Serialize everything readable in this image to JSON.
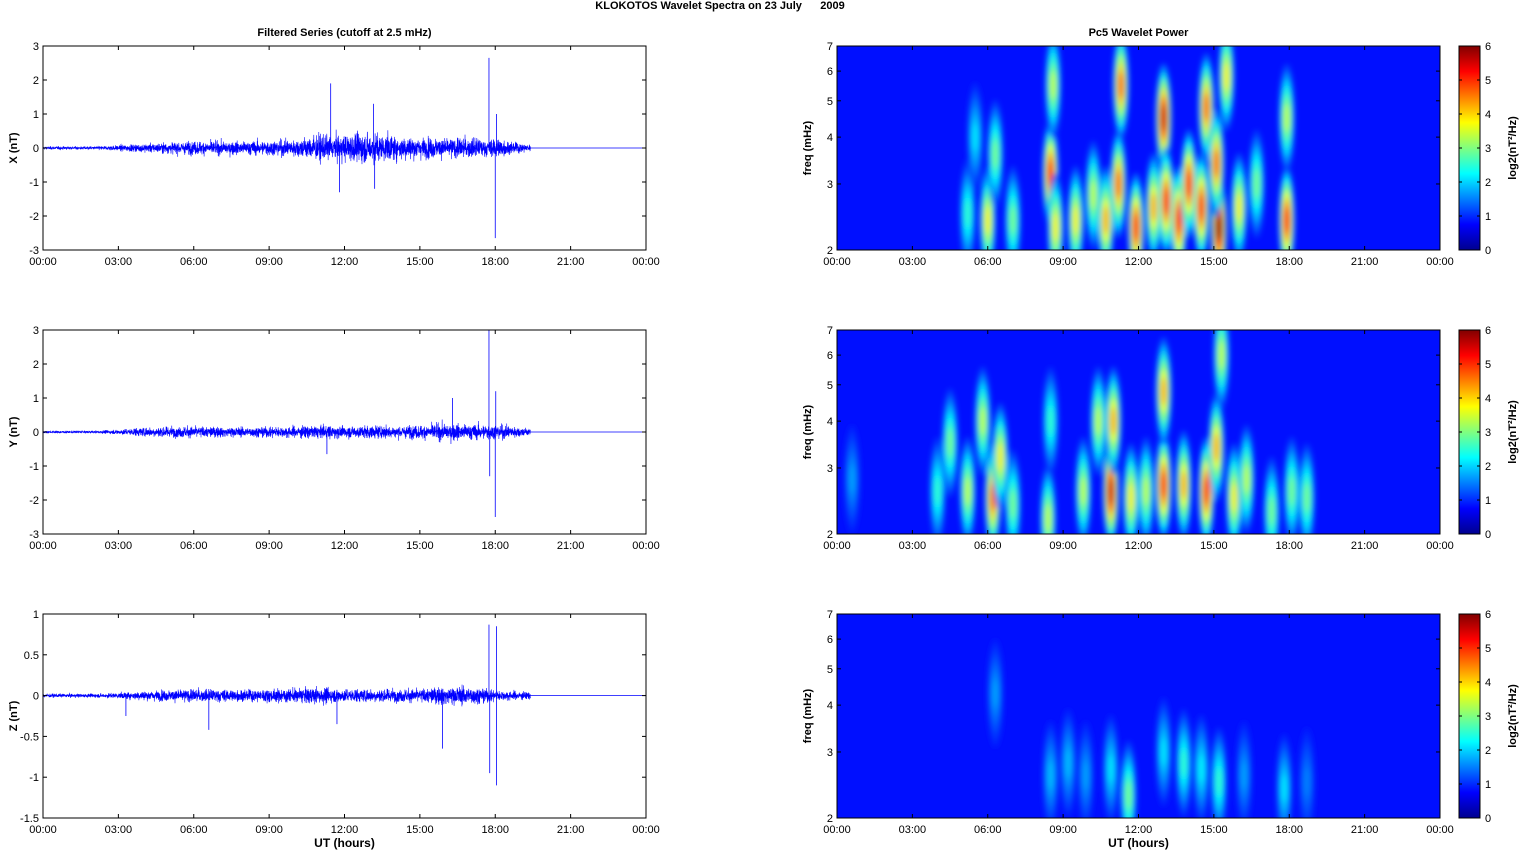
{
  "figure": {
    "title": "KLOKOTOS Wavelet Spectra on 23 July      2009"
  },
  "chart_data": [
    {
      "type": "line",
      "title": "Filtered Series (cutoff at 2.5 mHz)",
      "xlabel": "",
      "ylabel": "X (nT)",
      "x_ticks": [
        "00:00",
        "03:00",
        "06:00",
        "09:00",
        "12:00",
        "15:00",
        "18:00",
        "21:00",
        "00:00"
      ],
      "xlim_hours": [
        0,
        24
      ],
      "y_ticks": [
        "3",
        "2",
        "1",
        "0",
        "-1",
        "-2",
        "-3"
      ],
      "ylim": [
        -3,
        3
      ],
      "line_color": "#0000ff",
      "data_end_hour": 19.4,
      "envelope_hours": [
        0,
        2,
        4,
        6,
        8,
        10,
        11,
        11.5,
        12,
        13,
        14,
        15,
        16,
        17,
        17.8,
        18,
        18.5,
        19.3
      ],
      "envelope_amplitude": [
        0.08,
        0.08,
        0.22,
        0.35,
        0.35,
        0.45,
        0.7,
        0.6,
        0.7,
        0.8,
        0.65,
        0.55,
        0.5,
        0.55,
        0.4,
        0.6,
        0.35,
        0.2
      ],
      "spikes": [
        {
          "hour": 11.45,
          "value": 1.9
        },
        {
          "hour": 11.8,
          "value": -1.3
        },
        {
          "hour": 13.15,
          "value": 1.3
        },
        {
          "hour": 13.2,
          "value": -1.2
        },
        {
          "hour": 17.75,
          "value": 2.65
        },
        {
          "hour": 18.0,
          "value": -2.65
        },
        {
          "hour": 18.05,
          "value": 1.0
        }
      ]
    },
    {
      "type": "line",
      "xlabel": "",
      "ylabel": "Y (nT)",
      "x_ticks": [
        "00:00",
        "03:00",
        "06:00",
        "09:00",
        "12:00",
        "15:00",
        "18:00",
        "21:00",
        "00:00"
      ],
      "xlim_hours": [
        0,
        24
      ],
      "y_ticks": [
        "3",
        "2",
        "1",
        "0",
        "-1",
        "-2",
        "-3"
      ],
      "ylim": [
        -3,
        3
      ],
      "line_color": "#0000ff",
      "data_end_hour": 19.4,
      "envelope_hours": [
        0,
        2,
        3,
        4,
        6,
        8,
        10,
        11,
        12,
        13,
        14,
        15,
        16,
        17,
        18,
        18.5,
        19.3
      ],
      "envelope_amplitude": [
        0.06,
        0.06,
        0.12,
        0.25,
        0.3,
        0.25,
        0.3,
        0.35,
        0.3,
        0.35,
        0.3,
        0.35,
        0.45,
        0.4,
        0.4,
        0.35,
        0.2
      ],
      "spikes": [
        {
          "hour": 17.75,
          "value": 3.0
        },
        {
          "hour": 17.78,
          "value": -1.3
        },
        {
          "hour": 18.0,
          "value": -2.5
        },
        {
          "hour": 18.02,
          "value": 1.2
        },
        {
          "hour": 11.3,
          "value": -0.65
        },
        {
          "hour": 16.3,
          "value": 1.0
        }
      ]
    },
    {
      "type": "line",
      "xlabel": "UT (hours)",
      "ylabel": "Z (nT)",
      "x_ticks": [
        "00:00",
        "03:00",
        "06:00",
        "09:00",
        "12:00",
        "15:00",
        "18:00",
        "21:00",
        "00:00"
      ],
      "xlim_hours": [
        0,
        24
      ],
      "y_ticks": [
        "1",
        "0.5",
        "0",
        "-0.5",
        "-1",
        "-1.5"
      ],
      "ylim": [
        -1.5,
        1
      ],
      "line_color": "#0000ff",
      "data_end_hour": 19.4,
      "envelope_hours": [
        0,
        2,
        3,
        4,
        6,
        8,
        10,
        11,
        12,
        13,
        14,
        15,
        16,
        17,
        18,
        19.3
      ],
      "envelope_amplitude": [
        0.04,
        0.04,
        0.06,
        0.1,
        0.14,
        0.13,
        0.15,
        0.18,
        0.14,
        0.15,
        0.14,
        0.15,
        0.2,
        0.2,
        0.12,
        0.08
      ],
      "spikes": [
        {
          "hour": 3.3,
          "value": -0.25
        },
        {
          "hour": 6.6,
          "value": -0.42
        },
        {
          "hour": 11.7,
          "value": -0.35
        },
        {
          "hour": 15.9,
          "value": -0.65
        },
        {
          "hour": 17.75,
          "value": 0.87
        },
        {
          "hour": 17.78,
          "value": -0.95
        },
        {
          "hour": 18.05,
          "value": 0.85
        },
        {
          "hour": 18.05,
          "value": -1.1
        }
      ]
    },
    {
      "type": "heatmap",
      "title": "Pc5 Wavelet Power",
      "xlabel": "",
      "ylabel": "freq (mHz)",
      "x_ticks": [
        "00:00",
        "03:00",
        "06:00",
        "09:00",
        "12:00",
        "15:00",
        "18:00",
        "21:00",
        "00:00"
      ],
      "xlim_hours": [
        0,
        24
      ],
      "y_ticks": [
        "7",
        "6",
        "5",
        "4",
        "3",
        "2"
      ],
      "ylim_mhz": [
        2,
        7
      ],
      "y_scale": "log",
      "colorbar_label": "log2(nT²/Hz)",
      "colorbar_ticks": [
        "6",
        "5",
        "4",
        "3",
        "2",
        "1",
        "0"
      ],
      "clim": [
        0,
        6
      ],
      "colormap": "jet",
      "blobs": [
        {
          "hour": 5.2,
          "freq": 2.5,
          "power": 2.0
        },
        {
          "hour": 5.5,
          "freq": 4.0,
          "power": 1.5
        },
        {
          "hour": 6.0,
          "freq": 2.4,
          "power": 3.5
        },
        {
          "hour": 6.3,
          "freq": 3.6,
          "power": 2.5
        },
        {
          "hour": 7.0,
          "freq": 2.4,
          "power": 2.5
        },
        {
          "hour": 8.5,
          "freq": 3.2,
          "power": 5.0
        },
        {
          "hour": 8.7,
          "freq": 2.3,
          "power": 3.5
        },
        {
          "hour": 8.6,
          "freq": 5.5,
          "power": 3.0
        },
        {
          "hour": 9.5,
          "freq": 2.4,
          "power": 3.5
        },
        {
          "hour": 10.2,
          "freq": 2.8,
          "power": 3.0
        },
        {
          "hour": 10.7,
          "freq": 2.4,
          "power": 4.0
        },
        {
          "hour": 11.2,
          "freq": 3.0,
          "power": 4.5
        },
        {
          "hour": 11.3,
          "freq": 5.5,
          "power": 4.5
        },
        {
          "hour": 11.9,
          "freq": 2.3,
          "power": 5.0
        },
        {
          "hour": 12.6,
          "freq": 2.6,
          "power": 4.0
        },
        {
          "hour": 13.0,
          "freq": 4.5,
          "power": 5.5
        },
        {
          "hour": 13.1,
          "freq": 2.7,
          "power": 5.0
        },
        {
          "hour": 13.6,
          "freq": 2.4,
          "power": 5.0
        },
        {
          "hour": 14.0,
          "freq": 3.0,
          "power": 5.0
        },
        {
          "hour": 14.5,
          "freq": 2.6,
          "power": 5.0
        },
        {
          "hour": 14.7,
          "freq": 4.8,
          "power": 4.5
        },
        {
          "hour": 15.2,
          "freq": 2.3,
          "power": 6.0
        },
        {
          "hour": 15.1,
          "freq": 3.4,
          "power": 4.5
        },
        {
          "hour": 15.5,
          "freq": 5.8,
          "power": 3.5
        },
        {
          "hour": 16.0,
          "freq": 2.6,
          "power": 3.5
        },
        {
          "hour": 16.7,
          "freq": 3.0,
          "power": 2.5
        },
        {
          "hour": 17.9,
          "freq": 2.4,
          "power": 5.0
        },
        {
          "hour": 17.9,
          "freq": 4.5,
          "power": 3.0
        }
      ]
    },
    {
      "type": "heatmap",
      "xlabel": "",
      "ylabel": "freq (mHz)",
      "x_ticks": [
        "00:00",
        "03:00",
        "06:00",
        "09:00",
        "12:00",
        "15:00",
        "18:00",
        "21:00",
        "00:00"
      ],
      "xlim_hours": [
        0,
        24
      ],
      "y_ticks": [
        "7",
        "6",
        "5",
        "4",
        "3",
        "2"
      ],
      "ylim_mhz": [
        2,
        7
      ],
      "y_scale": "log",
      "colorbar_label": "log2(nT²/Hz)",
      "colorbar_ticks": [
        "6",
        "5",
        "4",
        "3",
        "2",
        "1",
        "0"
      ],
      "clim": [
        0,
        6
      ],
      "colormap": "jet",
      "blobs": [
        {
          "hour": 0.6,
          "freq": 2.8,
          "power": 1.0
        },
        {
          "hour": 4.0,
          "freq": 2.6,
          "power": 2.0
        },
        {
          "hour": 4.5,
          "freq": 3.5,
          "power": 2.5
        },
        {
          "hour": 5.2,
          "freq": 2.6,
          "power": 3.0
        },
        {
          "hour": 5.8,
          "freq": 4.0,
          "power": 3.0
        },
        {
          "hour": 6.2,
          "freq": 2.5,
          "power": 4.5
        },
        {
          "hour": 6.5,
          "freq": 3.2,
          "power": 3.5
        },
        {
          "hour": 7.0,
          "freq": 2.4,
          "power": 2.5
        },
        {
          "hour": 8.4,
          "freq": 2.2,
          "power": 3.0
        },
        {
          "hour": 8.5,
          "freq": 4.0,
          "power": 2.0
        },
        {
          "hour": 9.8,
          "freq": 2.6,
          "power": 3.0
        },
        {
          "hour": 10.4,
          "freq": 4.0,
          "power": 3.0
        },
        {
          "hour": 10.9,
          "freq": 2.6,
          "power": 5.5
        },
        {
          "hour": 11.0,
          "freq": 4.0,
          "power": 4.0
        },
        {
          "hour": 11.7,
          "freq": 2.5,
          "power": 3.5
        },
        {
          "hour": 12.3,
          "freq": 2.6,
          "power": 3.0
        },
        {
          "hour": 13.0,
          "freq": 2.7,
          "power": 5.0
        },
        {
          "hour": 13.0,
          "freq": 4.8,
          "power": 4.0
        },
        {
          "hour": 13.8,
          "freq": 2.7,
          "power": 4.0
        },
        {
          "hour": 14.7,
          "freq": 2.6,
          "power": 5.0
        },
        {
          "hour": 15.1,
          "freq": 3.4,
          "power": 4.0
        },
        {
          "hour": 15.3,
          "freq": 6.0,
          "power": 3.0
        },
        {
          "hour": 15.8,
          "freq": 2.5,
          "power": 3.5
        },
        {
          "hour": 16.3,
          "freq": 2.8,
          "power": 3.0
        },
        {
          "hour": 17.3,
          "freq": 2.3,
          "power": 2.5
        },
        {
          "hour": 18.1,
          "freq": 2.6,
          "power": 2.5
        },
        {
          "hour": 18.7,
          "freq": 2.5,
          "power": 2.5
        }
      ]
    },
    {
      "type": "heatmap",
      "xlabel": "UT (hours)",
      "ylabel": "freq (mHz)",
      "x_ticks": [
        "00:00",
        "03:00",
        "06:00",
        "09:00",
        "12:00",
        "15:00",
        "18:00",
        "21:00",
        "00:00"
      ],
      "xlim_hours": [
        0,
        24
      ],
      "y_ticks": [
        "7",
        "6",
        "5",
        "4",
        "3",
        "2"
      ],
      "ylim_mhz": [
        2,
        7
      ],
      "y_scale": "log",
      "colorbar_label": "log2(nT²/Hz)",
      "colorbar_ticks": [
        "6",
        "5",
        "4",
        "3",
        "2",
        "1",
        "0"
      ],
      "clim": [
        0,
        6
      ],
      "colormap": "jet",
      "blobs": [
        {
          "hour": 6.3,
          "freq": 4.3,
          "power": 1.0
        },
        {
          "hour": 8.5,
          "freq": 2.6,
          "power": 1.2
        },
        {
          "hour": 9.2,
          "freq": 2.8,
          "power": 1.2
        },
        {
          "hour": 9.9,
          "freq": 2.6,
          "power": 1.0
        },
        {
          "hour": 10.9,
          "freq": 2.7,
          "power": 1.5
        },
        {
          "hour": 11.6,
          "freq": 2.3,
          "power": 2.5
        },
        {
          "hour": 13.0,
          "freq": 3.0,
          "power": 1.5
        },
        {
          "hour": 13.8,
          "freq": 2.8,
          "power": 2.0
        },
        {
          "hour": 14.5,
          "freq": 2.7,
          "power": 1.6
        },
        {
          "hour": 15.2,
          "freq": 2.5,
          "power": 2.0
        },
        {
          "hour": 16.2,
          "freq": 2.6,
          "power": 1.0
        },
        {
          "hour": 17.8,
          "freq": 2.4,
          "power": 1.5
        },
        {
          "hour": 18.7,
          "freq": 2.5,
          "power": 0.8
        }
      ]
    }
  ]
}
